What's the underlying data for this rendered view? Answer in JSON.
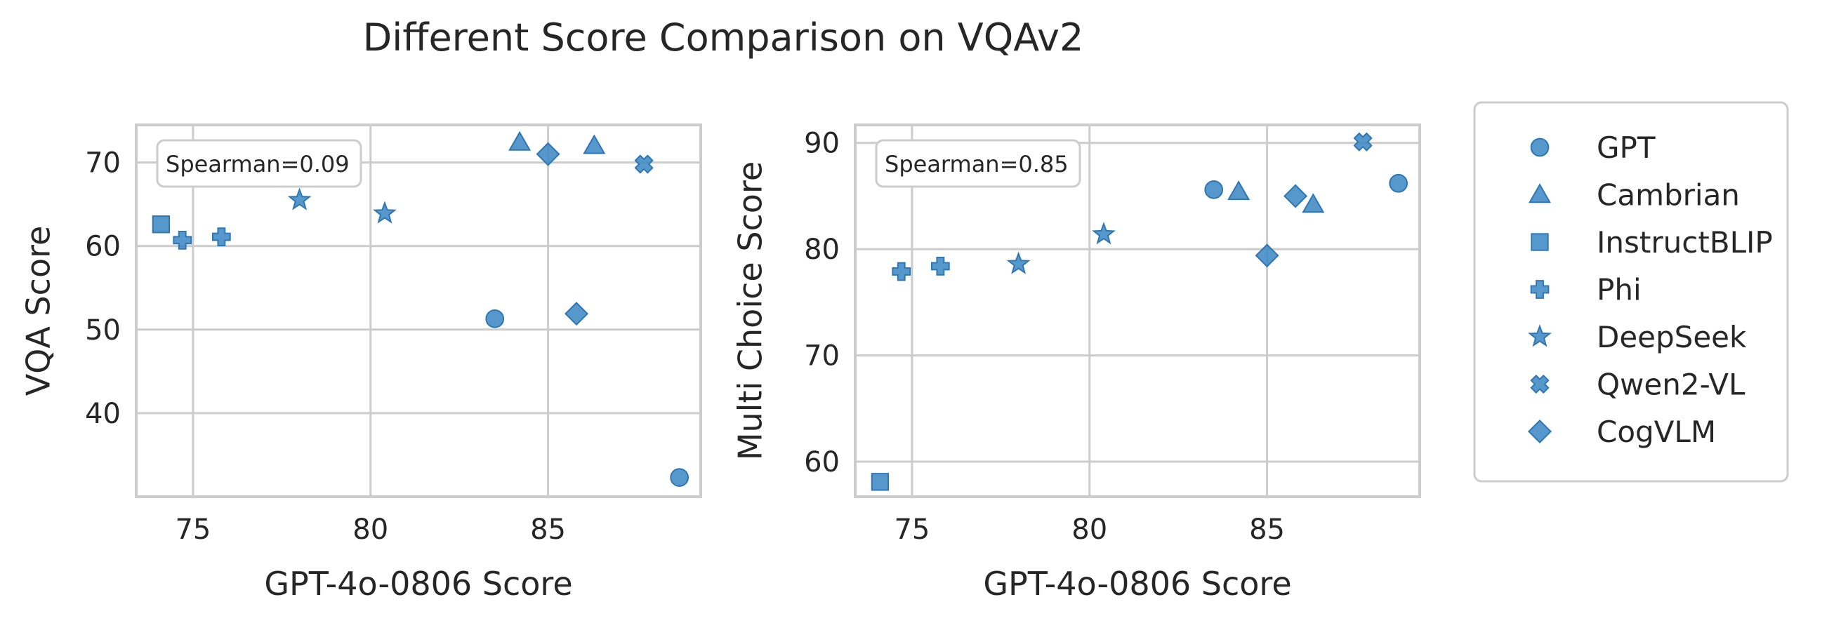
{
  "title": "Different Score Comparison on VQAv2",
  "legend": {
    "placement": "right",
    "entries": [
      {
        "name": "GPT",
        "marker": "circle"
      },
      {
        "name": "Cambrian",
        "marker": "triangle"
      },
      {
        "name": "InstructBLIP",
        "marker": "square"
      },
      {
        "name": "Phi",
        "marker": "plus"
      },
      {
        "name": "DeepSeek",
        "marker": "star"
      },
      {
        "name": "Qwen2-VL",
        "marker": "x"
      },
      {
        "name": "CogVLM",
        "marker": "diamond"
      }
    ]
  },
  "colors": {
    "marker": "#3a86c3",
    "marker_edge": "#2f77b4",
    "grid": "#cccccc",
    "spine": "#cccccc",
    "text": "#262626"
  },
  "chart_data": [
    {
      "type": "scatter",
      "annotation": "Spearman=0.09",
      "xlabel": "GPT-4o-0806 Score",
      "ylabel": "VQA Score",
      "xlim": [
        73.4,
        89.3
      ],
      "ylim": [
        30,
        74.5
      ],
      "xticks": [
        75,
        80,
        85
      ],
      "yticks": [
        40,
        50,
        60,
        70
      ],
      "points": [
        {
          "model": "GPT",
          "x": 83.5,
          "y": 51.3
        },
        {
          "model": "GPT",
          "x": 88.7,
          "y": 32.3
        },
        {
          "model": "Cambrian",
          "x": 84.2,
          "y": 72.4
        },
        {
          "model": "Cambrian",
          "x": 86.3,
          "y": 72.0
        },
        {
          "model": "InstructBLIP",
          "x": 74.1,
          "y": 62.6
        },
        {
          "model": "Phi",
          "x": 74.7,
          "y": 60.7
        },
        {
          "model": "Phi",
          "x": 75.8,
          "y": 61.1
        },
        {
          "model": "DeepSeek",
          "x": 78.0,
          "y": 65.5
        },
        {
          "model": "DeepSeek",
          "x": 80.4,
          "y": 63.9
        },
        {
          "model": "Qwen2-VL",
          "x": 87.7,
          "y": 69.8
        },
        {
          "model": "CogVLM",
          "x": 85.0,
          "y": 71.0
        },
        {
          "model": "CogVLM",
          "x": 85.8,
          "y": 51.9
        }
      ]
    },
    {
      "type": "scatter",
      "annotation": "Spearman=0.85",
      "xlabel": "GPT-4o-0806 Score",
      "ylabel": "Multi Choice Score",
      "xlim": [
        73.4,
        89.3
      ],
      "ylim": [
        56.7,
        91.7
      ],
      "xticks": [
        75,
        80,
        85
      ],
      "yticks": [
        60,
        70,
        80,
        90
      ],
      "points": [
        {
          "model": "GPT",
          "x": 83.5,
          "y": 85.6
        },
        {
          "model": "GPT",
          "x": 88.7,
          "y": 86.2
        },
        {
          "model": "Cambrian",
          "x": 84.2,
          "y": 85.4
        },
        {
          "model": "Cambrian",
          "x": 86.3,
          "y": 84.2
        },
        {
          "model": "InstructBLIP",
          "x": 74.1,
          "y": 58.1
        },
        {
          "model": "Phi",
          "x": 74.7,
          "y": 77.9
        },
        {
          "model": "Phi",
          "x": 75.8,
          "y": 78.4
        },
        {
          "model": "DeepSeek",
          "x": 78.0,
          "y": 78.6
        },
        {
          "model": "DeepSeek",
          "x": 80.4,
          "y": 81.4
        },
        {
          "model": "Qwen2-VL",
          "x": 87.7,
          "y": 90.1
        },
        {
          "model": "CogVLM",
          "x": 85.8,
          "y": 85.0
        },
        {
          "model": "CogVLM",
          "x": 85.0,
          "y": 79.4
        }
      ]
    }
  ]
}
